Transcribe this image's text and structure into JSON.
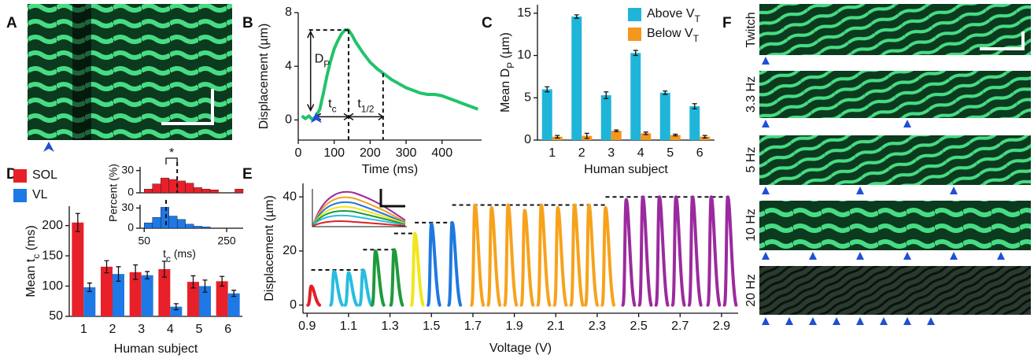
{
  "panel_labels": [
    "A",
    "B",
    "C",
    "D",
    "E",
    "F"
  ],
  "kymograph_labels": [
    "Twitch",
    "3.3 Hz",
    "5 Hz",
    "10 Hz",
    "20 Hz"
  ],
  "chart_data": [
    {
      "type": "line",
      "xlabel": "Time (ms)",
      "ylabel": "Displacement (µm)",
      "annotations": {
        "dp": {
          "text": "D",
          "sub": "P"
        },
        "tc": {
          "text": "t",
          "sub": "c"
        },
        "thalf": {
          "text": "t",
          "sub": "1/2"
        }
      },
      "x": [
        10,
        20,
        30,
        40,
        50,
        60,
        70,
        80,
        90,
        100,
        110,
        120,
        130,
        140,
        150,
        160,
        180,
        200,
        220,
        240,
        260,
        280,
        300,
        320,
        340,
        360,
        380,
        400,
        420,
        440,
        460,
        480,
        500
      ],
      "series": [
        {
          "color": "#22c36b",
          "values": [
            0.3,
            0.1,
            0.3,
            0.0,
            0.3,
            0.8,
            2.0,
            3.3,
            4.4,
            5.3,
            5.9,
            6.4,
            6.7,
            6.7,
            6.3,
            5.8,
            5.0,
            4.3,
            3.8,
            3.4,
            3.0,
            2.7,
            2.4,
            2.2,
            2.0,
            1.9,
            1.9,
            1.8,
            1.6,
            1.4,
            1.2,
            1.0,
            0.8
          ]
        }
      ],
      "markers_x": [
        140,
        236
      ],
      "xlim": [
        0,
        510
      ],
      "ylim": [
        -1.5,
        8
      ],
      "xticks": [
        0,
        100,
        200,
        300,
        400
      ],
      "yticks": [
        0,
        4,
        8
      ]
    },
    {
      "type": "bar",
      "xlabel": "Human subject",
      "ylabel": {
        "text": "Mean D",
        "sub": "P",
        "after": " (µm)"
      },
      "categories": [
        "1",
        "2",
        "3",
        "4",
        "5",
        "6"
      ],
      "series": [
        {
          "name": {
            "text": "Above V",
            "sub": "T"
          },
          "color": "#1fb5d9",
          "values": [
            6.0,
            14.6,
            5.3,
            10.3,
            5.6,
            4.0
          ],
          "errors": [
            0.3,
            0.2,
            0.4,
            0.3,
            0.2,
            0.3
          ]
        },
        {
          "name": {
            "text": "Below V",
            "sub": "T"
          },
          "color": "#f5961e",
          "values": [
            0.4,
            0.5,
            1.1,
            0.8,
            0.6,
            0.4
          ],
          "errors": [
            0.15,
            0.3,
            0.1,
            0.15,
            0.1,
            0.15
          ]
        }
      ],
      "ylim": [
        0,
        16
      ],
      "yticks": [
        0,
        5,
        10,
        15
      ]
    },
    {
      "type": "bar",
      "xlabel": "Human subject",
      "ylabel": {
        "text": "Mean t",
        "sub": "c",
        "after": " (ms)"
      },
      "categories": [
        "1",
        "2",
        "3",
        "4",
        "5",
        "6"
      ],
      "series": [
        {
          "name": "SOL",
          "color": "#e8202a",
          "values": [
            205,
            132,
            123,
            128,
            107,
            108
          ],
          "errors": [
            15,
            10,
            12,
            13,
            10,
            8
          ]
        },
        {
          "name": "VL",
          "color": "#1e78e6",
          "values": [
            98,
            120,
            118,
            66,
            100,
            88
          ],
          "errors": [
            7,
            12,
            6,
            5,
            10,
            5
          ]
        }
      ],
      "ylim": [
        50,
        232
      ],
      "yticks": [
        50,
        100,
        150,
        200
      ]
    },
    {
      "type": "histogram",
      "ylabel": "Percent (%)",
      "annotation": "*",
      "color": "#e8202a",
      "bins": [
        50,
        70,
        90,
        110,
        130,
        150,
        170,
        190,
        210,
        230,
        250,
        270,
        290
      ],
      "values": [
        5,
        12,
        20,
        18,
        16,
        13,
        7,
        5,
        4,
        0,
        0,
        5
      ],
      "mean": 130,
      "xlim": [
        40,
        290
      ],
      "ylim": [
        0,
        35
      ],
      "yticks": [
        0,
        30
      ]
    },
    {
      "type": "histogram",
      "xlabel": {
        "text": "t",
        "sub": "c",
        "after": " (ms)"
      },
      "color": "#1e78e6",
      "bins": [
        50,
        70,
        90,
        110,
        130,
        150,
        170,
        190,
        210,
        230,
        250,
        270,
        290
      ],
      "values": [
        8,
        16,
        31,
        18,
        13,
        6,
        3,
        2,
        0,
        0,
        0,
        0
      ],
      "mean": 103,
      "xlim": [
        40,
        290
      ],
      "ylim": [
        0,
        35
      ],
      "yticks": [
        0,
        30
      ],
      "xticks": [
        50,
        250
      ]
    },
    {
      "type": "pulse",
      "xlabel": "Voltage (V)",
      "ylabel": "Displacement (µm)",
      "series": [
        {
          "color": "#e31e24",
          "x": [
            0.92
          ],
          "values": [
            7
          ]
        },
        {
          "color": "#27bde0",
          "x": [
            1.03,
            1.1,
            1.17
          ],
          "values": [
            12.5,
            12,
            13
          ]
        },
        {
          "color": "#1f9a3a",
          "x": [
            1.23,
            1.32
          ],
          "values": [
            20,
            20.5
          ]
        },
        {
          "color": "#f2e51a",
          "x": [
            1.42
          ],
          "values": [
            26.5
          ]
        },
        {
          "color": "#1f78e0",
          "x": [
            1.5,
            1.6
          ],
          "values": [
            30,
            30.5
          ]
        },
        {
          "color": "#f7a21b",
          "x": [
            1.71,
            1.79,
            1.87,
            1.95,
            2.03,
            2.11,
            2.19,
            2.26,
            2.34
          ],
          "values": [
            37,
            36,
            37,
            35,
            37,
            36,
            37,
            37,
            36
          ]
        },
        {
          "color": "#9b2a9e",
          "x": [
            2.44,
            2.52,
            2.6,
            2.68,
            2.76,
            2.85,
            2.93
          ],
          "values": [
            39,
            40,
            40,
            40,
            40,
            40,
            40
          ]
        }
      ],
      "xlim": [
        0.88,
        2.98
      ],
      "ylim": [
        -3,
        45
      ],
      "xticks": [
        {
          "value": 0.9,
          "label": "0.9"
        },
        1.1,
        1.3,
        1.5,
        1.7,
        1.9,
        2.1,
        2.3,
        2.5,
        2.7,
        2.9
      ],
      "yticks": [
        0,
        20,
        40
      ]
    }
  ]
}
